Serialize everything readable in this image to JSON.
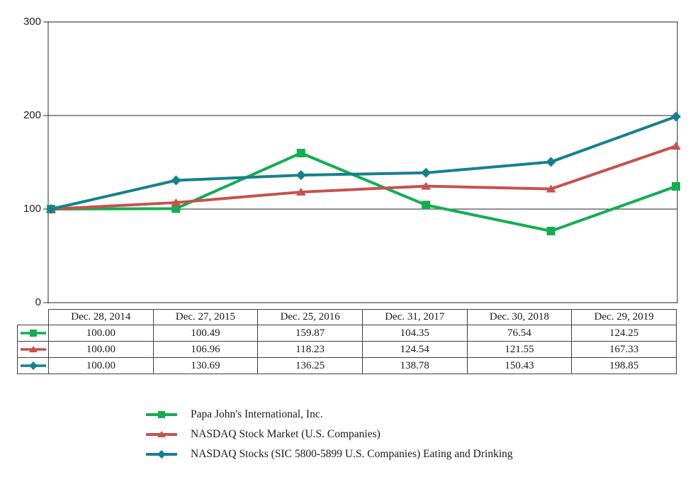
{
  "chart_data": {
    "type": "line",
    "title": "",
    "xlabel": "",
    "ylabel": "",
    "ylim": [
      0,
      300
    ],
    "grid": "horizontal",
    "legend_position": "bottom",
    "y_axis": {
      "tick_labels": [
        "300",
        "200",
        "100",
        "0"
      ],
      "tick_values": [
        300,
        200,
        100,
        0
      ]
    },
    "categories": [
      "Dec. 28, 2014",
      "Dec. 27, 2015",
      "Dec. 25, 2016",
      "Dec. 31, 2017",
      "Dec. 30, 2018",
      "Dec. 29, 2019"
    ],
    "series": [
      {
        "name": "Papa John's International, Inc.",
        "color": "#13ad52",
        "marker": "square",
        "values": [
          100.0,
          100.49,
          159.87,
          104.35,
          76.54,
          124.25
        ]
      },
      {
        "name": "NASDAQ Stock Market (U.S. Companies)",
        "color": "#c5524e",
        "marker": "triangle",
        "values": [
          100.0,
          106.96,
          118.23,
          124.54,
          121.55,
          167.33
        ]
      },
      {
        "name": "NASDAQ Stocks (SIC 5800-5899 U.S. Companies) Eating and Drinking",
        "color": "#15808d",
        "marker": "diamond",
        "values": [
          100.0,
          130.69,
          136.25,
          138.78,
          150.43,
          198.85
        ]
      }
    ]
  }
}
